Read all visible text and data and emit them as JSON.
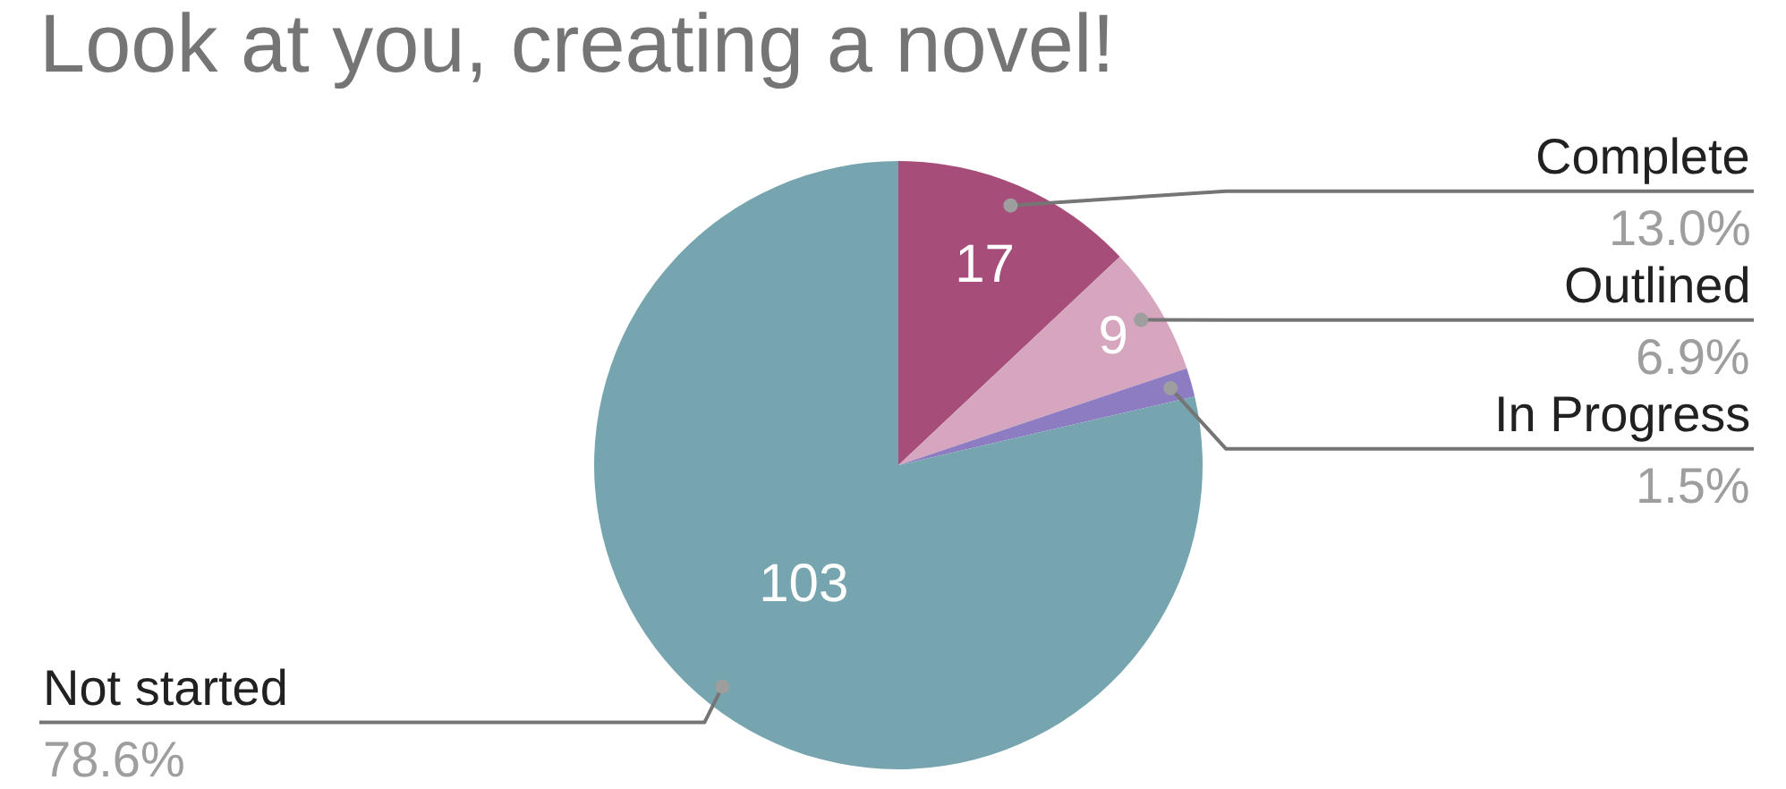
{
  "chart_data": {
    "type": "pie",
    "title": "Look at you, creating a novel!",
    "categories": [
      "Complete",
      "Outlined",
      "In Progress",
      "Not started"
    ],
    "values": [
      17,
      9,
      2,
      103
    ],
    "colors": [
      "#a64d79",
      "#d5a6bd",
      "#8e7cc3",
      "#76a5af"
    ],
    "value_labels": [
      "17",
      "9",
      null,
      "103"
    ],
    "annotations": [
      "13.0%",
      "6.9%",
      "1.5%",
      "78.6%"
    ],
    "legend": false
  }
}
